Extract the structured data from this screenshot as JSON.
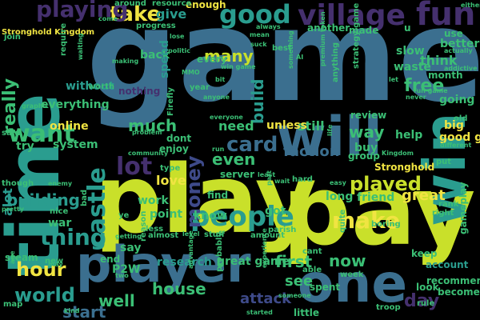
{
  "background": "#000000",
  "palette": {
    "blue": "#3b6f8f",
    "teal": "#2a9d8f",
    "green": "#3bbf75",
    "lime": "#c9e02a",
    "yellow": "#f0e442",
    "purple": "#45306e",
    "indigo": "#3e4a89",
    "darkpurple": "#441a5a"
  },
  "words": [
    {
      "text": "game",
      "color": "blue"
    },
    {
      "text": "play",
      "color": "lime"
    },
    {
      "text": "pay",
      "color": "lime"
    },
    {
      "text": "player",
      "color": "blue"
    },
    {
      "text": "one",
      "color": "blue"
    },
    {
      "text": "time",
      "color": "teal"
    },
    {
      "text": "will",
      "color": "blue"
    },
    {
      "text": "win",
      "color": "teal"
    },
    {
      "text": "fun",
      "color": "purple"
    },
    {
      "text": "village",
      "color": "purple"
    },
    {
      "text": "good",
      "color": "teal"
    },
    {
      "text": "people",
      "color": "teal"
    },
    {
      "text": "take",
      "color": "yellow"
    },
    {
      "text": "playing",
      "color": "purple"
    },
    {
      "text": "want",
      "color": "green"
    },
    {
      "text": "card",
      "color": "blue"
    },
    {
      "text": "money",
      "color": "indigo"
    },
    {
      "text": "castle",
      "color": "teal"
    },
    {
      "text": "build",
      "color": "teal"
    },
    {
      "text": "make",
      "color": "yellow"
    },
    {
      "text": "played",
      "color": "lime"
    },
    {
      "text": "lot",
      "color": "purple"
    },
    {
      "text": "world",
      "color": "teal"
    },
    {
      "text": "hour",
      "color": "yellow"
    },
    {
      "text": "thing",
      "color": "teal"
    },
    {
      "text": "day",
      "color": "purple"
    },
    {
      "text": "really",
      "color": "green"
    },
    {
      "text": "free",
      "color": "green"
    },
    {
      "text": "even",
      "color": "green"
    },
    {
      "text": "building",
      "color": "teal"
    },
    {
      "text": "many",
      "color": "lime"
    },
    {
      "text": "much",
      "color": "green"
    },
    {
      "text": "need",
      "color": "green"
    },
    {
      "text": "way",
      "color": "green"
    },
    {
      "text": "still",
      "color": "green"
    },
    {
      "text": "faction",
      "color": "blue"
    },
    {
      "text": "great",
      "color": "yellow"
    },
    {
      "text": "first",
      "color": "green"
    },
    {
      "text": "now",
      "color": "green"
    },
    {
      "text": "see",
      "color": "green"
    },
    {
      "text": "attack",
      "color": "indigo"
    },
    {
      "text": "house",
      "color": "green"
    },
    {
      "text": "well",
      "color": "green"
    },
    {
      "text": "start",
      "color": "blue"
    },
    {
      "text": "give",
      "color": "teal"
    },
    {
      "text": "back",
      "color": "green"
    },
    {
      "text": "every",
      "color": "green"
    },
    {
      "text": "spend",
      "color": "teal"
    },
    {
      "text": "think",
      "color": "green"
    },
    {
      "text": "better",
      "color": "green"
    },
    {
      "text": "use",
      "color": "green"
    },
    {
      "text": "slow",
      "color": "green"
    },
    {
      "text": "waste",
      "color": "green"
    },
    {
      "text": "going",
      "color": "green"
    },
    {
      "text": "online",
      "color": "yellow"
    },
    {
      "text": "everything",
      "color": "green"
    },
    {
      "text": "without",
      "color": "teal"
    },
    {
      "text": "system",
      "color": "green"
    },
    {
      "text": "try",
      "color": "green"
    },
    {
      "text": "alot",
      "color": "teal"
    },
    {
      "text": "war",
      "color": "green"
    },
    {
      "text": "steam",
      "color": "green"
    },
    {
      "text": "review",
      "color": "green"
    },
    {
      "text": "help",
      "color": "green"
    },
    {
      "text": "big",
      "color": "yellow"
    },
    {
      "text": "good game",
      "color": "yellow"
    },
    {
      "text": "buy",
      "color": "green"
    },
    {
      "text": "group",
      "color": "green"
    },
    {
      "text": "Stronghold",
      "color": "yellow"
    },
    {
      "text": "long",
      "color": "green"
    },
    {
      "text": "friend",
      "color": "green"
    },
    {
      "text": "love",
      "color": "yellow"
    },
    {
      "text": "work",
      "color": "green"
    },
    {
      "text": "point",
      "color": "green"
    },
    {
      "text": "know",
      "color": "green"
    },
    {
      "text": "got",
      "color": "green"
    },
    {
      "text": "research",
      "color": "teal"
    },
    {
      "text": "great game",
      "color": "green"
    },
    {
      "text": "spent",
      "color": "green"
    },
    {
      "text": "keep",
      "color": "green"
    },
    {
      "text": "account",
      "color": "teal"
    },
    {
      "text": "recommend",
      "color": "green"
    },
    {
      "text": "become",
      "color": "green"
    },
    {
      "text": "little",
      "color": "green"
    },
    {
      "text": "end",
      "color": "green"
    },
    {
      "text": "P2W",
      "color": "green"
    },
    {
      "text": "say",
      "color": "green"
    },
    {
      "text": "server",
      "color": "green"
    },
    {
      "text": "dont",
      "color": "green"
    },
    {
      "text": "enjoy",
      "color": "green"
    },
    {
      "text": "unless",
      "color": "yellow"
    },
    {
      "text": "nothing",
      "color": "purple"
    },
    {
      "text": "Stronghold Kingdom",
      "color": "yellow"
    },
    {
      "text": "join",
      "color": "green"
    },
    {
      "text": "MMO",
      "color": "green"
    },
    {
      "text": "AI",
      "color": "green"
    },
    {
      "text": "said",
      "color": "green"
    },
    {
      "text": "enough",
      "color": "yellow"
    },
    {
      "text": "resource",
      "color": "green"
    },
    {
      "text": "progress",
      "color": "green"
    },
    {
      "text": "around",
      "color": "green"
    },
    {
      "text": "another",
      "color": "green"
    },
    {
      "text": "made",
      "color": "green"
    },
    {
      "text": "mean",
      "color": "green"
    },
    {
      "text": "best",
      "color": "green"
    },
    {
      "text": "fun game",
      "color": "green"
    },
    {
      "text": "either",
      "color": "green"
    },
    {
      "text": "strategy game",
      "color": "green"
    },
    {
      "text": "anything",
      "color": "green"
    },
    {
      "text": "premium token",
      "color": "green"
    },
    {
      "text": "something",
      "color": "green"
    },
    {
      "text": "win game",
      "color": "green"
    },
    {
      "text": "graphic",
      "color": "green"
    },
    {
      "text": "Firefly",
      "color": "green"
    },
    {
      "text": "problem",
      "color": "green"
    },
    {
      "text": "old",
      "color": "green"
    },
    {
      "text": "addictive",
      "color": "green"
    },
    {
      "text": "month",
      "color": "green"
    },
    {
      "text": "actually",
      "color": "green"
    },
    {
      "text": "different",
      "color": "green"
    },
    {
      "text": "Kingdom",
      "color": "green"
    },
    {
      "text": "parish",
      "color": "green"
    },
    {
      "text": "amount",
      "color": "green"
    },
    {
      "text": "quite",
      "color": "green"
    },
    {
      "text": "boring",
      "color": "green"
    },
    {
      "text": "rank",
      "color": "green"
    },
    {
      "text": "right",
      "color": "green"
    },
    {
      "text": "gameplay",
      "color": "green"
    },
    {
      "text": "look",
      "color": "green"
    },
    {
      "text": "troop",
      "color": "green"
    },
    {
      "text": "rule",
      "color": "green"
    },
    {
      "text": "cant",
      "color": "green"
    },
    {
      "text": "bad",
      "color": "green"
    },
    {
      "text": "nice",
      "color": "green"
    },
    {
      "text": "pretty",
      "color": "green"
    },
    {
      "text": "though",
      "color": "green"
    },
    {
      "text": "enemy",
      "color": "green"
    },
    {
      "text": "less",
      "color": "green"
    },
    {
      "text": "type",
      "color": "green"
    },
    {
      "text": "find",
      "color": "green"
    },
    {
      "text": "hard",
      "color": "green"
    },
    {
      "text": "stuff",
      "color": "green"
    },
    {
      "text": "level",
      "color": "green"
    },
    {
      "text": "almost",
      "color": "green"
    },
    {
      "text": "getting",
      "color": "green"
    },
    {
      "text": "reason",
      "color": "green"
    },
    {
      "text": "two",
      "color": "green"
    },
    {
      "text": "may",
      "color": "green"
    },
    {
      "text": "new",
      "color": "green"
    },
    {
      "text": "age",
      "color": "green"
    },
    {
      "text": "map",
      "color": "green"
    },
    {
      "text": "kind",
      "color": "green"
    },
    {
      "text": "probably",
      "color": "green"
    },
    {
      "text": "experience",
      "color": "green"
    },
    {
      "text": "advantage",
      "color": "green"
    },
    {
      "text": "someone",
      "color": "green"
    },
    {
      "text": "started",
      "color": "green"
    },
    {
      "text": "able",
      "color": "green"
    },
    {
      "text": "week",
      "color": "green"
    },
    {
      "text": "everyone",
      "color": "green"
    },
    {
      "text": "anyone",
      "color": "green"
    },
    {
      "text": "year",
      "color": "green"
    },
    {
      "text": "bit",
      "color": "green"
    },
    {
      "text": "politic",
      "color": "green"
    },
    {
      "text": "let",
      "color": "green"
    },
    {
      "text": "never",
      "color": "green"
    },
    {
      "text": "suck",
      "color": "green"
    },
    {
      "text": "always",
      "color": "green"
    },
    {
      "text": "lose",
      "color": "green"
    },
    {
      "text": "making",
      "color": "green"
    },
    {
      "text": "worth",
      "color": "green"
    },
    {
      "text": "require",
      "color": "green"
    },
    {
      "text": "waiting",
      "color": "green"
    },
    {
      "text": "come",
      "color": "green"
    },
    {
      "text": "part",
      "color": "green"
    },
    {
      "text": "wait",
      "color": "green"
    },
    {
      "text": "least",
      "color": "green"
    },
    {
      "text": "community",
      "color": "green"
    },
    {
      "text": "run",
      "color": "green"
    },
    {
      "text": "life",
      "color": "green"
    },
    {
      "text": "ye",
      "color": "green"
    },
    {
      "text": "put",
      "color": "green"
    },
    {
      "text": "easy",
      "color": "green"
    },
    {
      "text": "u",
      "color": "green"
    }
  ]
}
